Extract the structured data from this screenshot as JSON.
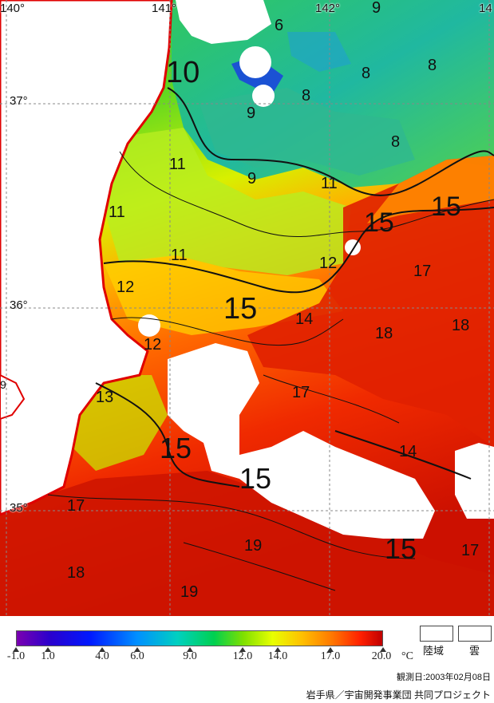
{
  "map": {
    "longitude_labels": [
      "140°",
      "141°",
      "142°",
      "14"
    ],
    "latitude_labels": [
      "37°",
      "36°",
      "35°"
    ],
    "contour_labels": [
      "10",
      "9",
      "6",
      "8",
      "8",
      "8",
      "9",
      "8",
      "11",
      "11",
      "9",
      "11",
      "15",
      "15",
      "11",
      "12",
      "12",
      "17",
      "15",
      "14",
      "18",
      "18",
      "12",
      "17",
      "13",
      "15",
      "14",
      "15",
      "17",
      "18",
      "19",
      "19",
      "15",
      "17",
      "9"
    ]
  },
  "legend": {
    "ticks": [
      "-1.0",
      "1.0",
      "4.0",
      "6.0",
      "9.0",
      "12.0",
      "14.0",
      "17.0",
      "20.0"
    ],
    "unit": "°C",
    "land_label": "陸域",
    "cloud_label": "雲",
    "colors": {
      "min": "#7a00b0",
      "cool": "#0018ff",
      "mid": "#00d050",
      "warm": "#ffc000",
      "max": "#c00000"
    }
  },
  "observation_date": "観測日:2003年02月08日",
  "credit": "岩手県／宇宙開発事業団 共同プロジェクト"
}
